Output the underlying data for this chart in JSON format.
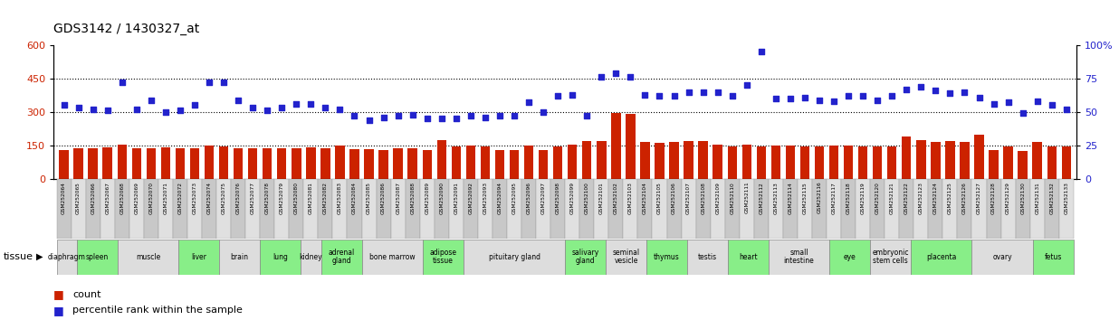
{
  "title": "GDS3142 / 1430327_at",
  "samples": [
    "GSM252064",
    "GSM252065",
    "GSM252066",
    "GSM252067",
    "GSM252068",
    "GSM252069",
    "GSM252070",
    "GSM252071",
    "GSM252072",
    "GSM252073",
    "GSM252074",
    "GSM252075",
    "GSM252076",
    "GSM252077",
    "GSM252078",
    "GSM252079",
    "GSM252080",
    "GSM252081",
    "GSM252082",
    "GSM252083",
    "GSM252084",
    "GSM252085",
    "GSM252086",
    "GSM252087",
    "GSM252088",
    "GSM252089",
    "GSM252090",
    "GSM252091",
    "GSM252092",
    "GSM252093",
    "GSM252094",
    "GSM252095",
    "GSM252096",
    "GSM252097",
    "GSM252098",
    "GSM252099",
    "GSM252100",
    "GSM252101",
    "GSM252102",
    "GSM252103",
    "GSM252104",
    "GSM252105",
    "GSM252106",
    "GSM252107",
    "GSM252108",
    "GSM252109",
    "GSM252110",
    "GSM252111",
    "GSM252112",
    "GSM252113",
    "GSM252114",
    "GSM252115",
    "GSM252116",
    "GSM252117",
    "GSM252118",
    "GSM252119",
    "GSM252120",
    "GSM252121",
    "GSM252122",
    "GSM252123",
    "GSM252124",
    "GSM252125",
    "GSM252126",
    "GSM252127",
    "GSM252128",
    "GSM252129",
    "GSM252130",
    "GSM252131",
    "GSM252132",
    "GSM252133"
  ],
  "counts": [
    130,
    140,
    138,
    142,
    155,
    138,
    140,
    142,
    138,
    138,
    150,
    148,
    140,
    138,
    140,
    138,
    140,
    142,
    140,
    150,
    135,
    133,
    132,
    140,
    140,
    132,
    175,
    148,
    150,
    148,
    132,
    130,
    150,
    130,
    148,
    155,
    170,
    170,
    295,
    290,
    165,
    163,
    165,
    170,
    170,
    155,
    148,
    155,
    148,
    150,
    150,
    148,
    148,
    150,
    150,
    145,
    148,
    148,
    190,
    175,
    165,
    170,
    165,
    200,
    130,
    145,
    128,
    165,
    148,
    148
  ],
  "percentiles": [
    55,
    53,
    52,
    51,
    72,
    52,
    59,
    50,
    51,
    55,
    72,
    72,
    59,
    53,
    51,
    53,
    56,
    56,
    53,
    52,
    47,
    44,
    46,
    47,
    48,
    45,
    45,
    45,
    47,
    46,
    47,
    47,
    57,
    50,
    62,
    63,
    47,
    76,
    79,
    76,
    63,
    62,
    62,
    65,
    65,
    65,
    62,
    70,
    95,
    60,
    60,
    61,
    59,
    58,
    62,
    62,
    59,
    62,
    67,
    69,
    66,
    64,
    65,
    61,
    56,
    57,
    49,
    58,
    55,
    52
  ],
  "tissues": [
    {
      "name": "diaphragm",
      "start": 0,
      "end": 1,
      "alt": false
    },
    {
      "name": "spleen",
      "start": 1,
      "end": 3,
      "alt": true
    },
    {
      "name": "muscle",
      "start": 3,
      "end": 6,
      "alt": false
    },
    {
      "name": "liver",
      "start": 6,
      "end": 8,
      "alt": true
    },
    {
      "name": "brain",
      "start": 8,
      "end": 10,
      "alt": false
    },
    {
      "name": "lung",
      "start": 10,
      "end": 12,
      "alt": true
    },
    {
      "name": "kidney",
      "start": 12,
      "end": 13,
      "alt": false
    },
    {
      "name": "adrenal\ngland",
      "start": 13,
      "end": 15,
      "alt": true
    },
    {
      "name": "bone marrow",
      "start": 15,
      "end": 18,
      "alt": false
    },
    {
      "name": "adipose\ntissue",
      "start": 18,
      "end": 20,
      "alt": true
    },
    {
      "name": "pituitary gland",
      "start": 20,
      "end": 25,
      "alt": false
    },
    {
      "name": "salivary\ngland",
      "start": 25,
      "end": 27,
      "alt": true
    },
    {
      "name": "seminal\nvesicle",
      "start": 27,
      "end": 29,
      "alt": false
    },
    {
      "name": "thymus",
      "start": 29,
      "end": 31,
      "alt": true
    },
    {
      "name": "testis",
      "start": 31,
      "end": 33,
      "alt": false
    },
    {
      "name": "heart",
      "start": 33,
      "end": 35,
      "alt": true
    },
    {
      "name": "small\nintestine",
      "start": 35,
      "end": 38,
      "alt": false
    },
    {
      "name": "eye",
      "start": 38,
      "end": 40,
      "alt": true
    },
    {
      "name": "embryonic\nstem cells",
      "start": 40,
      "end": 42,
      "alt": false
    },
    {
      "name": "placenta",
      "start": 42,
      "end": 45,
      "alt": true
    },
    {
      "name": "ovary",
      "start": 45,
      "end": 48,
      "alt": false
    },
    {
      "name": "fetus",
      "start": 48,
      "end": 50,
      "alt": true
    }
  ],
  "ylim_left": [
    0,
    600
  ],
  "ylim_right": [
    0,
    100
  ],
  "yticks_left": [
    0,
    150,
    300,
    450,
    600
  ],
  "yticks_right": [
    0,
    25,
    50,
    75,
    100
  ],
  "bar_color": "#cc2200",
  "dot_color": "#2222cc",
  "tissue_color_alt": "#88ee88",
  "tissue_color_norm": "#dddddd",
  "label_color_red": "#cc2200",
  "label_color_blue": "#2222cc"
}
